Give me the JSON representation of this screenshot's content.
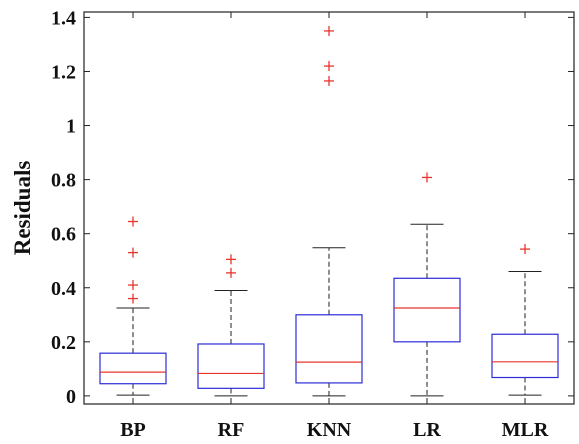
{
  "chart_data": {
    "type": "boxplot",
    "title": "",
    "xlabel": "",
    "ylabel": "Residuals",
    "ylim": [
      -0.03,
      1.42
    ],
    "yticks": [
      0,
      0.2,
      0.4,
      0.6,
      0.8,
      1,
      1.2,
      1.4
    ],
    "ytick_labels": [
      "0",
      "0.2",
      "0.4",
      "0.6",
      "0.8",
      "1",
      "1.2",
      "1.4"
    ],
    "categories": [
      "BP",
      "RF",
      "KNN",
      "LR",
      "MLR"
    ],
    "boxes": [
      {
        "category": "BP",
        "whisker_low": 0.003,
        "q1": 0.045,
        "median": 0.088,
        "q3": 0.158,
        "whisker_high": 0.325,
        "outliers": [
          0.36,
          0.41,
          0.53,
          0.645
        ]
      },
      {
        "category": "RF",
        "whisker_low": 0.0,
        "q1": 0.028,
        "median": 0.083,
        "q3": 0.192,
        "whisker_high": 0.39,
        "outliers": [
          0.455,
          0.505
        ]
      },
      {
        "category": "KNN",
        "whisker_low": 0.0,
        "q1": 0.048,
        "median": 0.125,
        "q3": 0.3,
        "whisker_high": 0.548,
        "outliers": [
          1.165,
          1.22,
          1.35
        ]
      },
      {
        "category": "LR",
        "whisker_low": 0.0,
        "q1": 0.2,
        "median": 0.325,
        "q3": 0.435,
        "whisker_high": 0.635,
        "outliers": [
          0.808
        ]
      },
      {
        "category": "MLR",
        "whisker_low": 0.003,
        "q1": 0.068,
        "median": 0.126,
        "q3": 0.228,
        "whisker_high": 0.46,
        "outliers": [
          0.543
        ]
      }
    ],
    "colors": {
      "box": "#2b2bd9",
      "median": "#e8352c",
      "whisker": "#222222",
      "outlier": "#e8352c",
      "axis": "#222222"
    },
    "grid": false,
    "legend": "none"
  }
}
